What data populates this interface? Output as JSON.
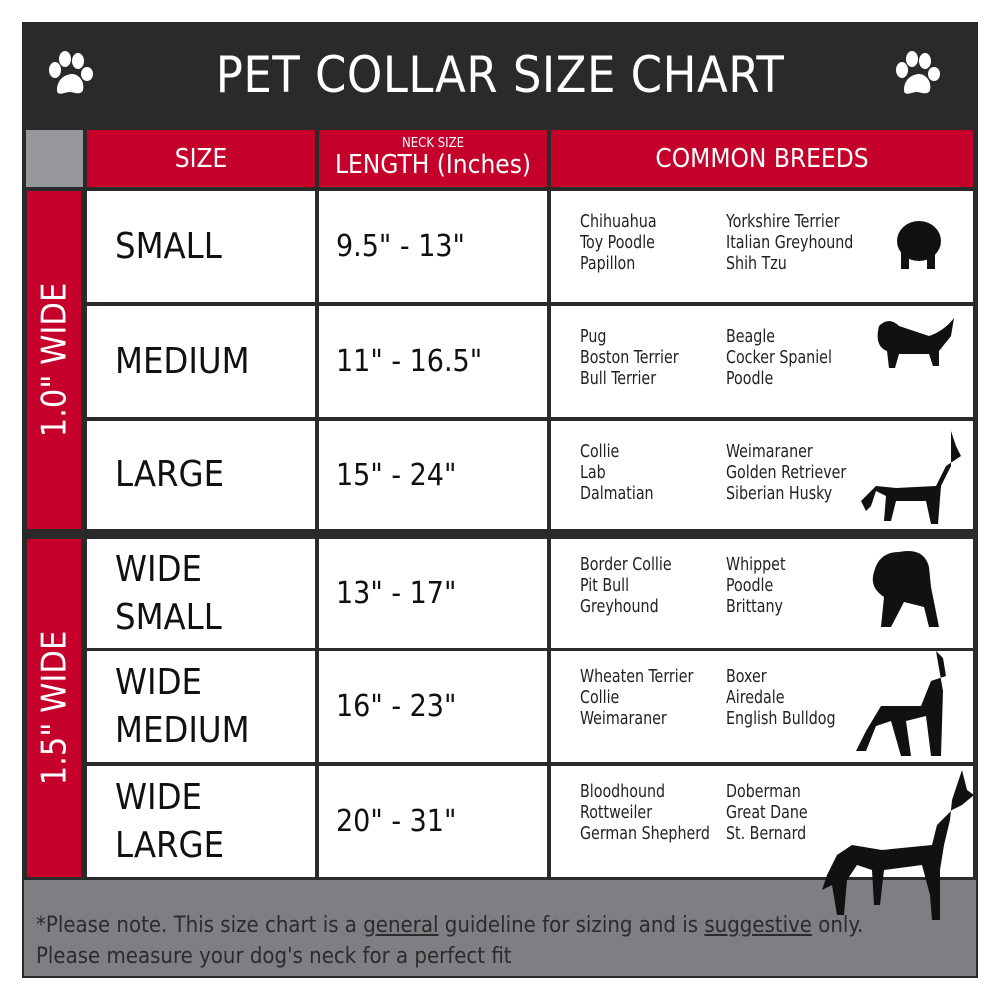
{
  "title": "PET COLLAR SIZE CHART",
  "headers": {
    "size": "SIZE",
    "length_small": "NECK SIZE",
    "length": "LENGTH (Inches)",
    "breeds": "COMMON BREEDS"
  },
  "groups": [
    {
      "label": "1.0\" WIDE"
    },
    {
      "label": "1.5\" WIDE"
    }
  ],
  "rows": [
    {
      "size": "SMALL",
      "length": "9.5\" - 13\"",
      "breeds_a": [
        "Chihuahua",
        "Toy Poodle",
        "Papillon"
      ],
      "breeds_b": [
        "Yorkshire Terrier",
        "Italian Greyhound",
        "Shih Tzu"
      ]
    },
    {
      "size": "MEDIUM",
      "length": "11\" - 16.5\"",
      "breeds_a": [
        "Pug",
        "Boston Terrier",
        "Bull Terrier"
      ],
      "breeds_b": [
        "Beagle",
        "Cocker Spaniel",
        "Poodle"
      ]
    },
    {
      "size": "LARGE",
      "length": "15\" - 24\"",
      "breeds_a": [
        "Collie",
        "Lab",
        "Dalmatian"
      ],
      "breeds_b": [
        "Weimaraner",
        "Golden Retriever",
        "Siberian Husky"
      ]
    },
    {
      "size": "WIDE SMALL",
      "length": "13\" - 17\"",
      "breeds_a": [
        "Border Collie",
        "Pit Bull",
        "Greyhound"
      ],
      "breeds_b": [
        "Whippet",
        "Poodle",
        "Brittany"
      ]
    },
    {
      "size": "WIDE MEDIUM",
      "length": "16\" - 23\"",
      "breeds_a": [
        "Wheaten Terrier",
        "Collie",
        "Weimaraner"
      ],
      "breeds_b": [
        "Boxer",
        "Airedale",
        "English Bulldog"
      ]
    },
    {
      "size": "WIDE LARGE",
      "length": "20\" - 31\"",
      "breeds_a": [
        "Bloodhound",
        "Rottweiler",
        "German Shepherd"
      ],
      "breeds_b": [
        "Doberman",
        "Great Dane",
        "St. Bernard"
      ]
    }
  ],
  "footer": {
    "p1": "*Please note. This size chart is a ",
    "u1": "general",
    "p2": " guideline for sizing and is ",
    "u2": "suggestive",
    "p3": " only.",
    "line2": "Please measure your dog's neck for a perfect fit"
  },
  "colors": {
    "accent": "#c4002b",
    "dark": "#2a2a2a",
    "gray": "#7e7f83"
  },
  "icons": [
    "paw-icon",
    "dog-silhouette-icon"
  ]
}
